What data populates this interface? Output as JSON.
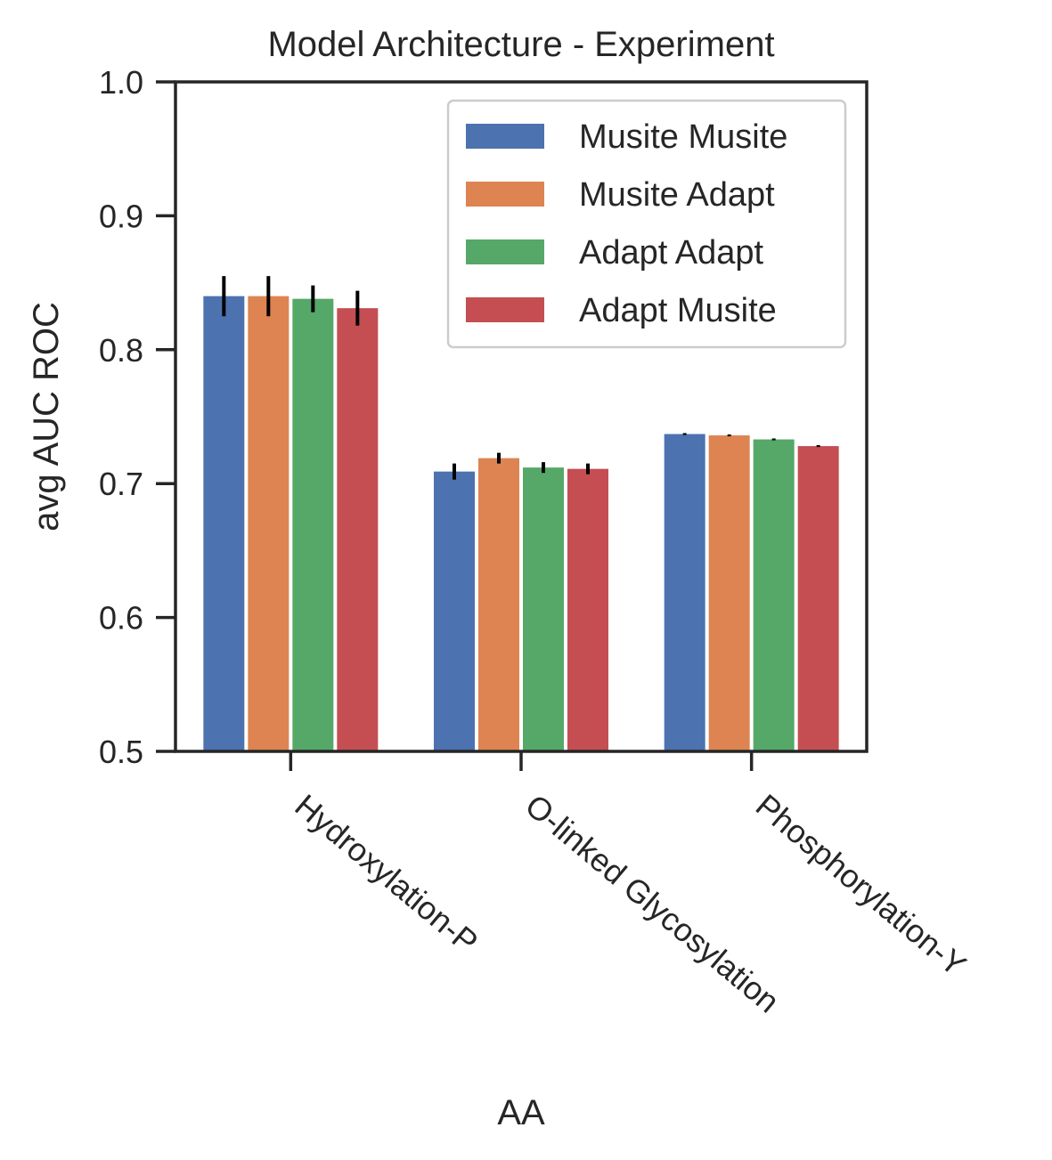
{
  "chart_data": {
    "type": "bar",
    "title": "Model Architecture - Experiment",
    "xlabel": "AA",
    "ylabel": "avg  AUC ROC",
    "ylim": [
      0.5,
      1.0
    ],
    "yticks": [
      "0.5",
      "0.6",
      "0.7",
      "0.8",
      "0.9",
      "1.0"
    ],
    "grid": false,
    "legend_position": "top-right",
    "categories": [
      "Hydroxylation-P",
      "O-linked Glycosylation",
      "Phosphorylation-Y"
    ],
    "series": [
      {
        "name": "Musite Musite",
        "color": "#4c72b0",
        "values": [
          0.84,
          0.709,
          0.737
        ],
        "errors": [
          0.015,
          0.006,
          0.0007
        ]
      },
      {
        "name": "Musite Adapt",
        "color": "#dd8452",
        "values": [
          0.84,
          0.719,
          0.736
        ],
        "errors": [
          0.015,
          0.004,
          0.0007
        ]
      },
      {
        "name": "Adapt Adapt",
        "color": "#55a868",
        "values": [
          0.838,
          0.712,
          0.733
        ],
        "errors": [
          0.01,
          0.004,
          0.0007
        ]
      },
      {
        "name": "Adapt Musite",
        "color": "#c44e52",
        "values": [
          0.831,
          0.711,
          0.728
        ],
        "errors": [
          0.013,
          0.004,
          0.0007
        ]
      }
    ]
  }
}
